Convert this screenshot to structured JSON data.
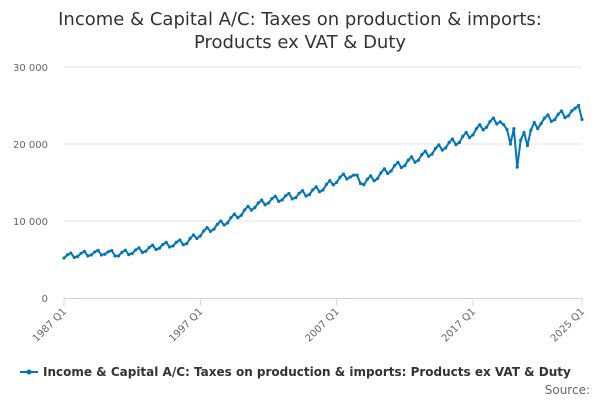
{
  "chart_data": {
    "type": "line",
    "title_lines": [
      "Income & Capital A/C: Taxes on production & imports:",
      "Products ex VAT & Duty"
    ],
    "xlabel": "",
    "ylabel": "",
    "y_ticks": [
      0,
      10000,
      20000,
      30000
    ],
    "y_tick_labels": [
      "0",
      "10 000",
      "20 000",
      "30 000"
    ],
    "ylim": [
      0,
      30000
    ],
    "x_tick_labels": [
      "1987 Q1",
      "1997 Q1",
      "2007 Q1",
      "2017 Q1",
      "2025 Q1"
    ],
    "x_tick_years": [
      1987,
      1997,
      2007,
      2017,
      2025
    ],
    "x_start_year": 1987,
    "x_end_year": 2025,
    "series": [
      {
        "name": "Income & Capital A/C: Taxes on production & imports: Products ex VAT & Duty",
        "color": "#0075b8",
        "annual_anchors": [
          [
            1987,
            5400
          ],
          [
            1988,
            5600
          ],
          [
            1989,
            5800
          ],
          [
            1990,
            5900
          ],
          [
            1991,
            5700
          ],
          [
            1992,
            6000
          ],
          [
            1993,
            6300
          ],
          [
            1994,
            6700
          ],
          [
            1995,
            7000
          ],
          [
            1996,
            7300
          ],
          [
            1997,
            8300
          ],
          [
            1998,
            9200
          ],
          [
            1999,
            10000
          ],
          [
            2000,
            11000
          ],
          [
            2001,
            12000
          ],
          [
            2002,
            12600
          ],
          [
            2003,
            13000
          ],
          [
            2004,
            13300
          ],
          [
            2005,
            13700
          ],
          [
            2006,
            14300
          ],
          [
            2007,
            15300
          ],
          [
            2008,
            16000
          ],
          [
            2009,
            15000
          ],
          [
            2010,
            15800
          ],
          [
            2011,
            16800
          ],
          [
            2012,
            17500
          ],
          [
            2013,
            18200
          ],
          [
            2014,
            19000
          ],
          [
            2015,
            19800
          ],
          [
            2016,
            20500
          ],
          [
            2017,
            21500
          ],
          [
            2018,
            22500
          ],
          [
            2019,
            23200
          ],
          [
            2020,
            19500
          ],
          [
            2021,
            21500
          ],
          [
            2022,
            23000
          ],
          [
            2023,
            23500
          ],
          [
            2024,
            24000
          ],
          [
            2025,
            24200
          ]
        ],
        "quarterly_pattern": [
          -350,
          250,
          550,
          -450
        ],
        "overrides": [
          [
            "2020Q1",
            22000
          ],
          [
            "2020Q2",
            17000
          ],
          [
            "2020Q3",
            20500
          ],
          [
            "2020Q4",
            21500
          ],
          [
            "2021Q1",
            19800
          ],
          [
            "2021Q2",
            21800
          ],
          [
            "2021Q3",
            22800
          ],
          [
            "2021Q4",
            22000
          ],
          [
            "2024Q4",
            25000
          ],
          [
            "2025Q1",
            23200
          ]
        ]
      }
    ],
    "legend": {
      "position": "bottom-left",
      "label": "Income & Capital A/C: Taxes on production & imports: Products ex VAT & Duty"
    },
    "grid": true,
    "source_label": "Source:"
  }
}
